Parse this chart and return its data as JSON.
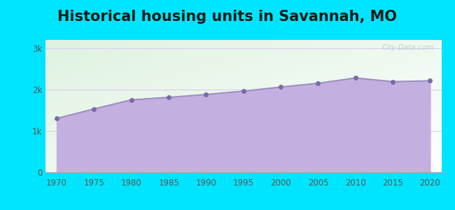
{
  "title": "Historical housing units in Savannah, MO",
  "title_fontsize": 15,
  "title_fontweight": "bold",
  "title_color": "#1a1a1a",
  "years": [
    1970,
    1975,
    1980,
    1985,
    1990,
    1995,
    2000,
    2005,
    2010,
    2015,
    2020
  ],
  "values": [
    1300,
    1530,
    1750,
    1810,
    1880,
    1960,
    2060,
    2150,
    2280,
    2190,
    2210
  ],
  "line_color": "#9b8fc0",
  "fill_color": "#c4b0e0",
  "fill_alpha": 1.0,
  "marker_color": "#7a6aaa",
  "marker_size": 4,
  "bg_outer": "#00e5ff",
  "yticks": [
    0,
    1000,
    2000,
    3000
  ],
  "ytick_labels": [
    "0",
    "1k",
    "2k",
    "3k"
  ],
  "ylim": [
    0,
    3200
  ],
  "xtick_start": 1970,
  "xtick_end": 2020,
  "xtick_step": 5,
  "watermark_text": "City-Data.com",
  "watermark_color": "#99bbbb",
  "watermark_alpha": 0.6,
  "grid_color": "#ddccee",
  "tick_color": "#555555",
  "tick_fontsize": 8.5,
  "spine_color": "#aaaaaa"
}
